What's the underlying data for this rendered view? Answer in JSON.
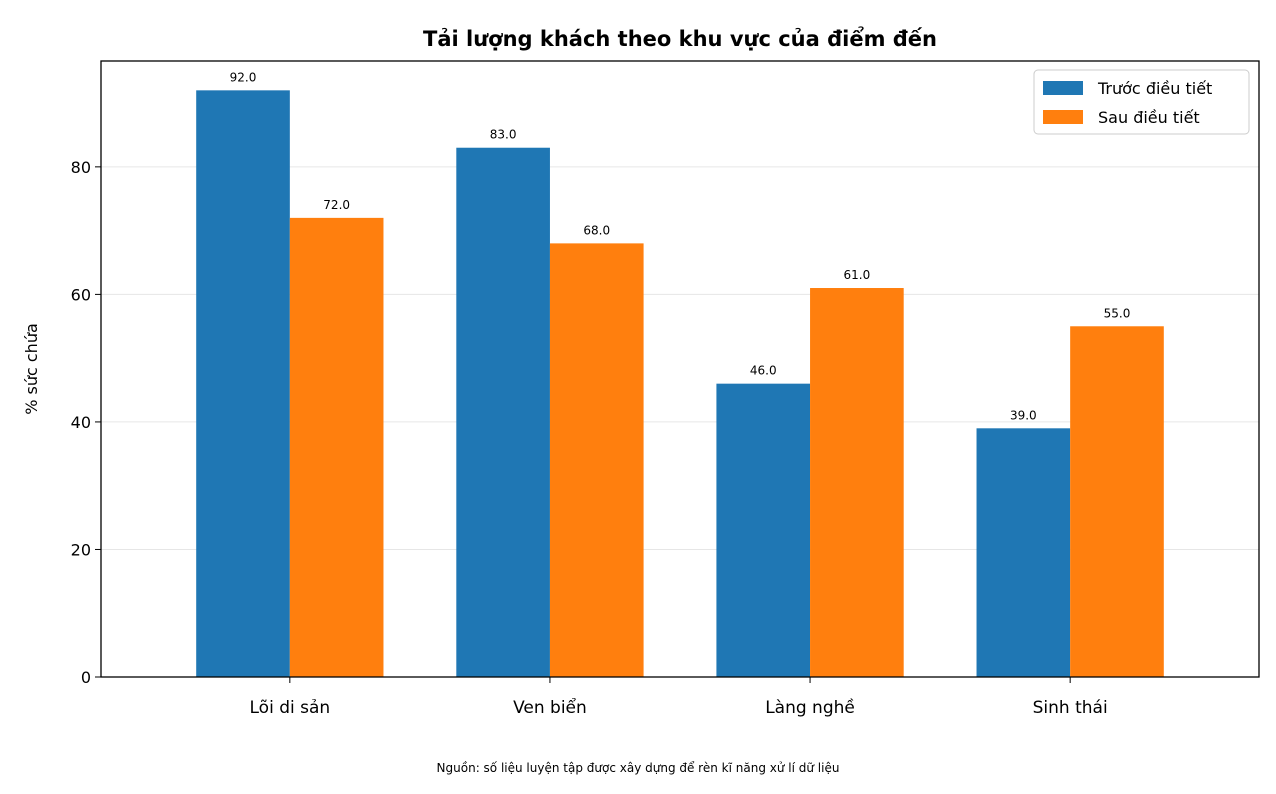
{
  "chart_data": {
    "type": "bar",
    "title": "Tải lượng khách theo khu vực của điểm đến",
    "xlabel": "",
    "ylabel": "% sức chứa",
    "categories": [
      "Lõi di sản",
      "Ven biển",
      "Làng nghề",
      "Sinh thái"
    ],
    "series": [
      {
        "name": "Trước điều tiết",
        "color": "#1f77b4",
        "values": [
          92.0,
          83.0,
          46.0,
          39.0
        ]
      },
      {
        "name": "Sau điều tiết",
        "color": "#ff7f0e",
        "values": [
          72.0,
          68.0,
          61.0,
          55.0
        ]
      }
    ],
    "ylim": [
      0,
      96.6
    ],
    "yticks": [
      0,
      20,
      40,
      60,
      80
    ],
    "grid": "horizontal",
    "legend_position": "top-right",
    "data_labels": true
  },
  "source_note": "Nguồn: số liệu luyện tập được xây dựng để rèn kĩ năng xử lí dữ liệu"
}
